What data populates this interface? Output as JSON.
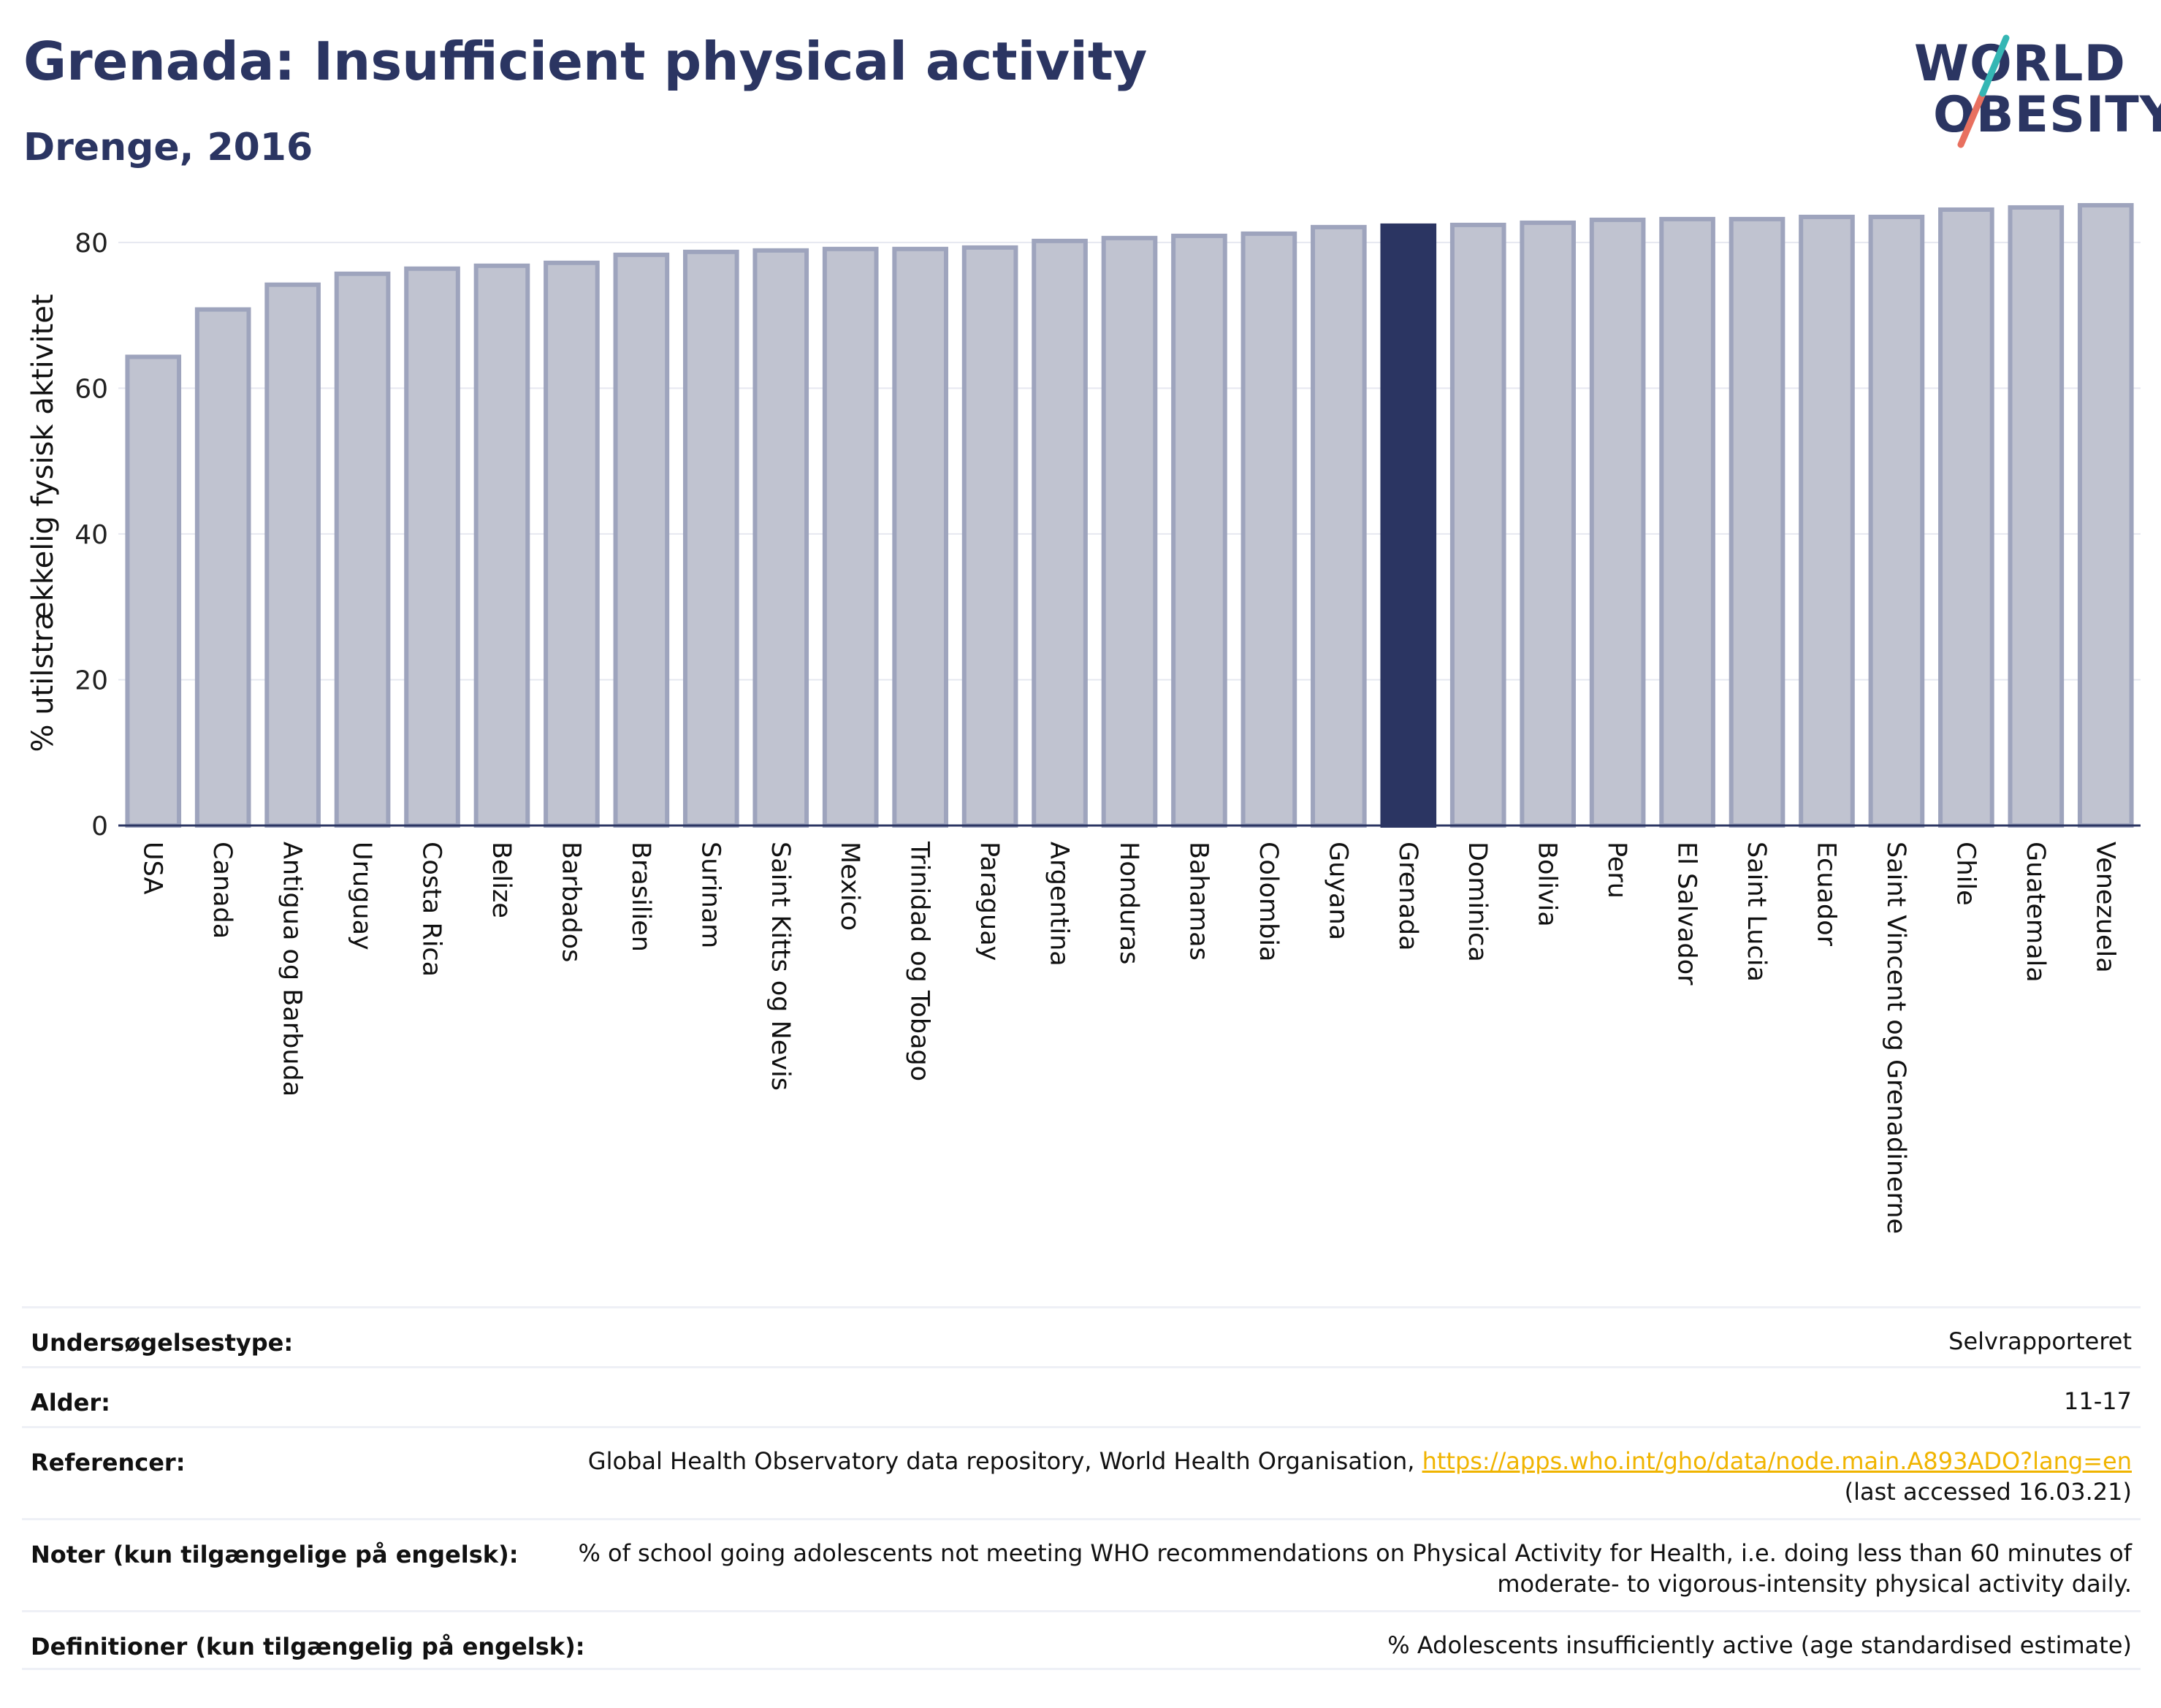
{
  "header": {
    "title": "Grenada: Insufficient physical activity",
    "subtitle": "Drenge, 2016"
  },
  "logo": {
    "line1": "WORLD",
    "line2": "OBESITY"
  },
  "chart_data": {
    "type": "bar",
    "ylabel": "% utilstrækkelig fysisk aktivitet",
    "xlabel": "",
    "ylim": [
      0,
      87
    ],
    "yticks": [
      0,
      20,
      40,
      60,
      80
    ],
    "grid": true,
    "highlight": "Grenada",
    "colors": {
      "bar": "#c0c3d0",
      "bar_edge": "#9ea4bd",
      "highlight": "#2b3562"
    },
    "categories": [
      "USA",
      "Canada",
      "Antigua og Barbuda",
      "Uruguay",
      "Costa Rica",
      "Belize",
      "Barbados",
      "Brasilien",
      "Surinam",
      "Saint Kitts og Nevis",
      "Mexico",
      "Trinidad og Tobago",
      "Paraguay",
      "Argentina",
      "Honduras",
      "Bahamas",
      "Colombia",
      "Guyana",
      "Grenada",
      "Dominica",
      "Bolivia",
      "Peru",
      "El Salvador",
      "Saint Lucia",
      "Ecuador",
      "Saint Vincent og Grenadinerne",
      "Chile",
      "Guatemala",
      "Venezuela"
    ],
    "values": [
      64.3,
      70.8,
      74.2,
      75.7,
      76.4,
      76.8,
      77.2,
      78.3,
      78.7,
      78.9,
      79.1,
      79.1,
      79.3,
      80.2,
      80.6,
      80.9,
      81.2,
      82.1,
      82.3,
      82.4,
      82.7,
      83.1,
      83.2,
      83.2,
      83.5,
      83.5,
      84.5,
      84.8,
      85.1
    ]
  },
  "info": {
    "survey_type": {
      "label": "Undersøgelsestype:",
      "value": "Selvrapporteret"
    },
    "age": {
      "label": "Alder:",
      "value": "11-17"
    },
    "references": {
      "label": "Referencer:",
      "text": "Global Health Observatory data repository, World Health Organisation, ",
      "link": "https://apps.who.int/gho/data/node.main.A893ADO?lang=en",
      "accessed": "(last accessed 16.03.21)"
    },
    "notes": {
      "label": "Noter (kun tilgængelige på engelsk):",
      "line1": "% of school going adolescents not meeting WHO recommendations on Physical Activity for Health, i.e. doing less than 60 minutes of",
      "line2": "moderate- to vigorous-intensity physical activity daily."
    },
    "definitions": {
      "label": "Definitioner (kun tilgængelig på engelsk):",
      "value": "% Adolescents insufficiently active (age standardised estimate)"
    }
  }
}
